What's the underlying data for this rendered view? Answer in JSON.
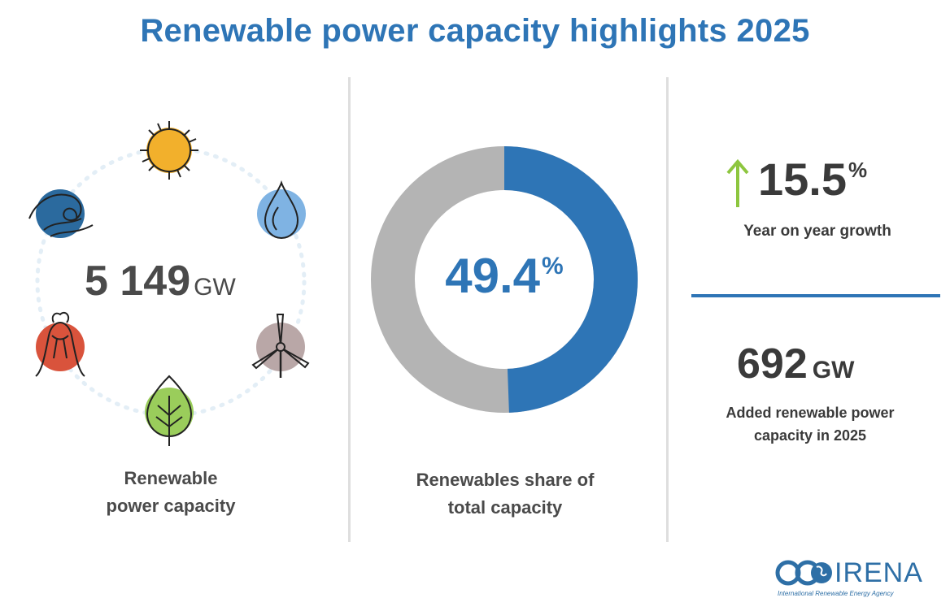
{
  "title": "Renewable power capacity highlights 2025",
  "capacity": {
    "value": "5 149",
    "unit": "GW",
    "caption_line1": "Renewable",
    "caption_line2": "power capacity",
    "icons": [
      "sun-icon",
      "water-drop-icon",
      "wind-turbine-icon",
      "leaf-icon",
      "volcano-icon",
      "wave-icon"
    ]
  },
  "share": {
    "value": "49.4",
    "unit": "%",
    "caption_line1": "Renewables share of",
    "caption_line2": "total capacity",
    "fraction": 0.494,
    "colors": {
      "renewable": "#2e75b6",
      "other": "#b4b4b4"
    }
  },
  "growth": {
    "value": "15.5",
    "unit": "%",
    "label": "Year on year growth",
    "arrow_color": "#8dc63f"
  },
  "added": {
    "value": "692",
    "unit": "GW",
    "label_line1": "Added renewable power",
    "label_line2": "capacity in 2025"
  },
  "logo": {
    "name": "IRENA",
    "subtitle": "International Renewable Energy Agency"
  },
  "colors": {
    "accent": "#2e75b6",
    "sun": "#f2b02c",
    "water": "#7fb3e3",
    "wind": "#b9a7a7",
    "leaf": "#9acd5b",
    "volcano": "#d9533c",
    "wave": "#2b6a9e"
  }
}
